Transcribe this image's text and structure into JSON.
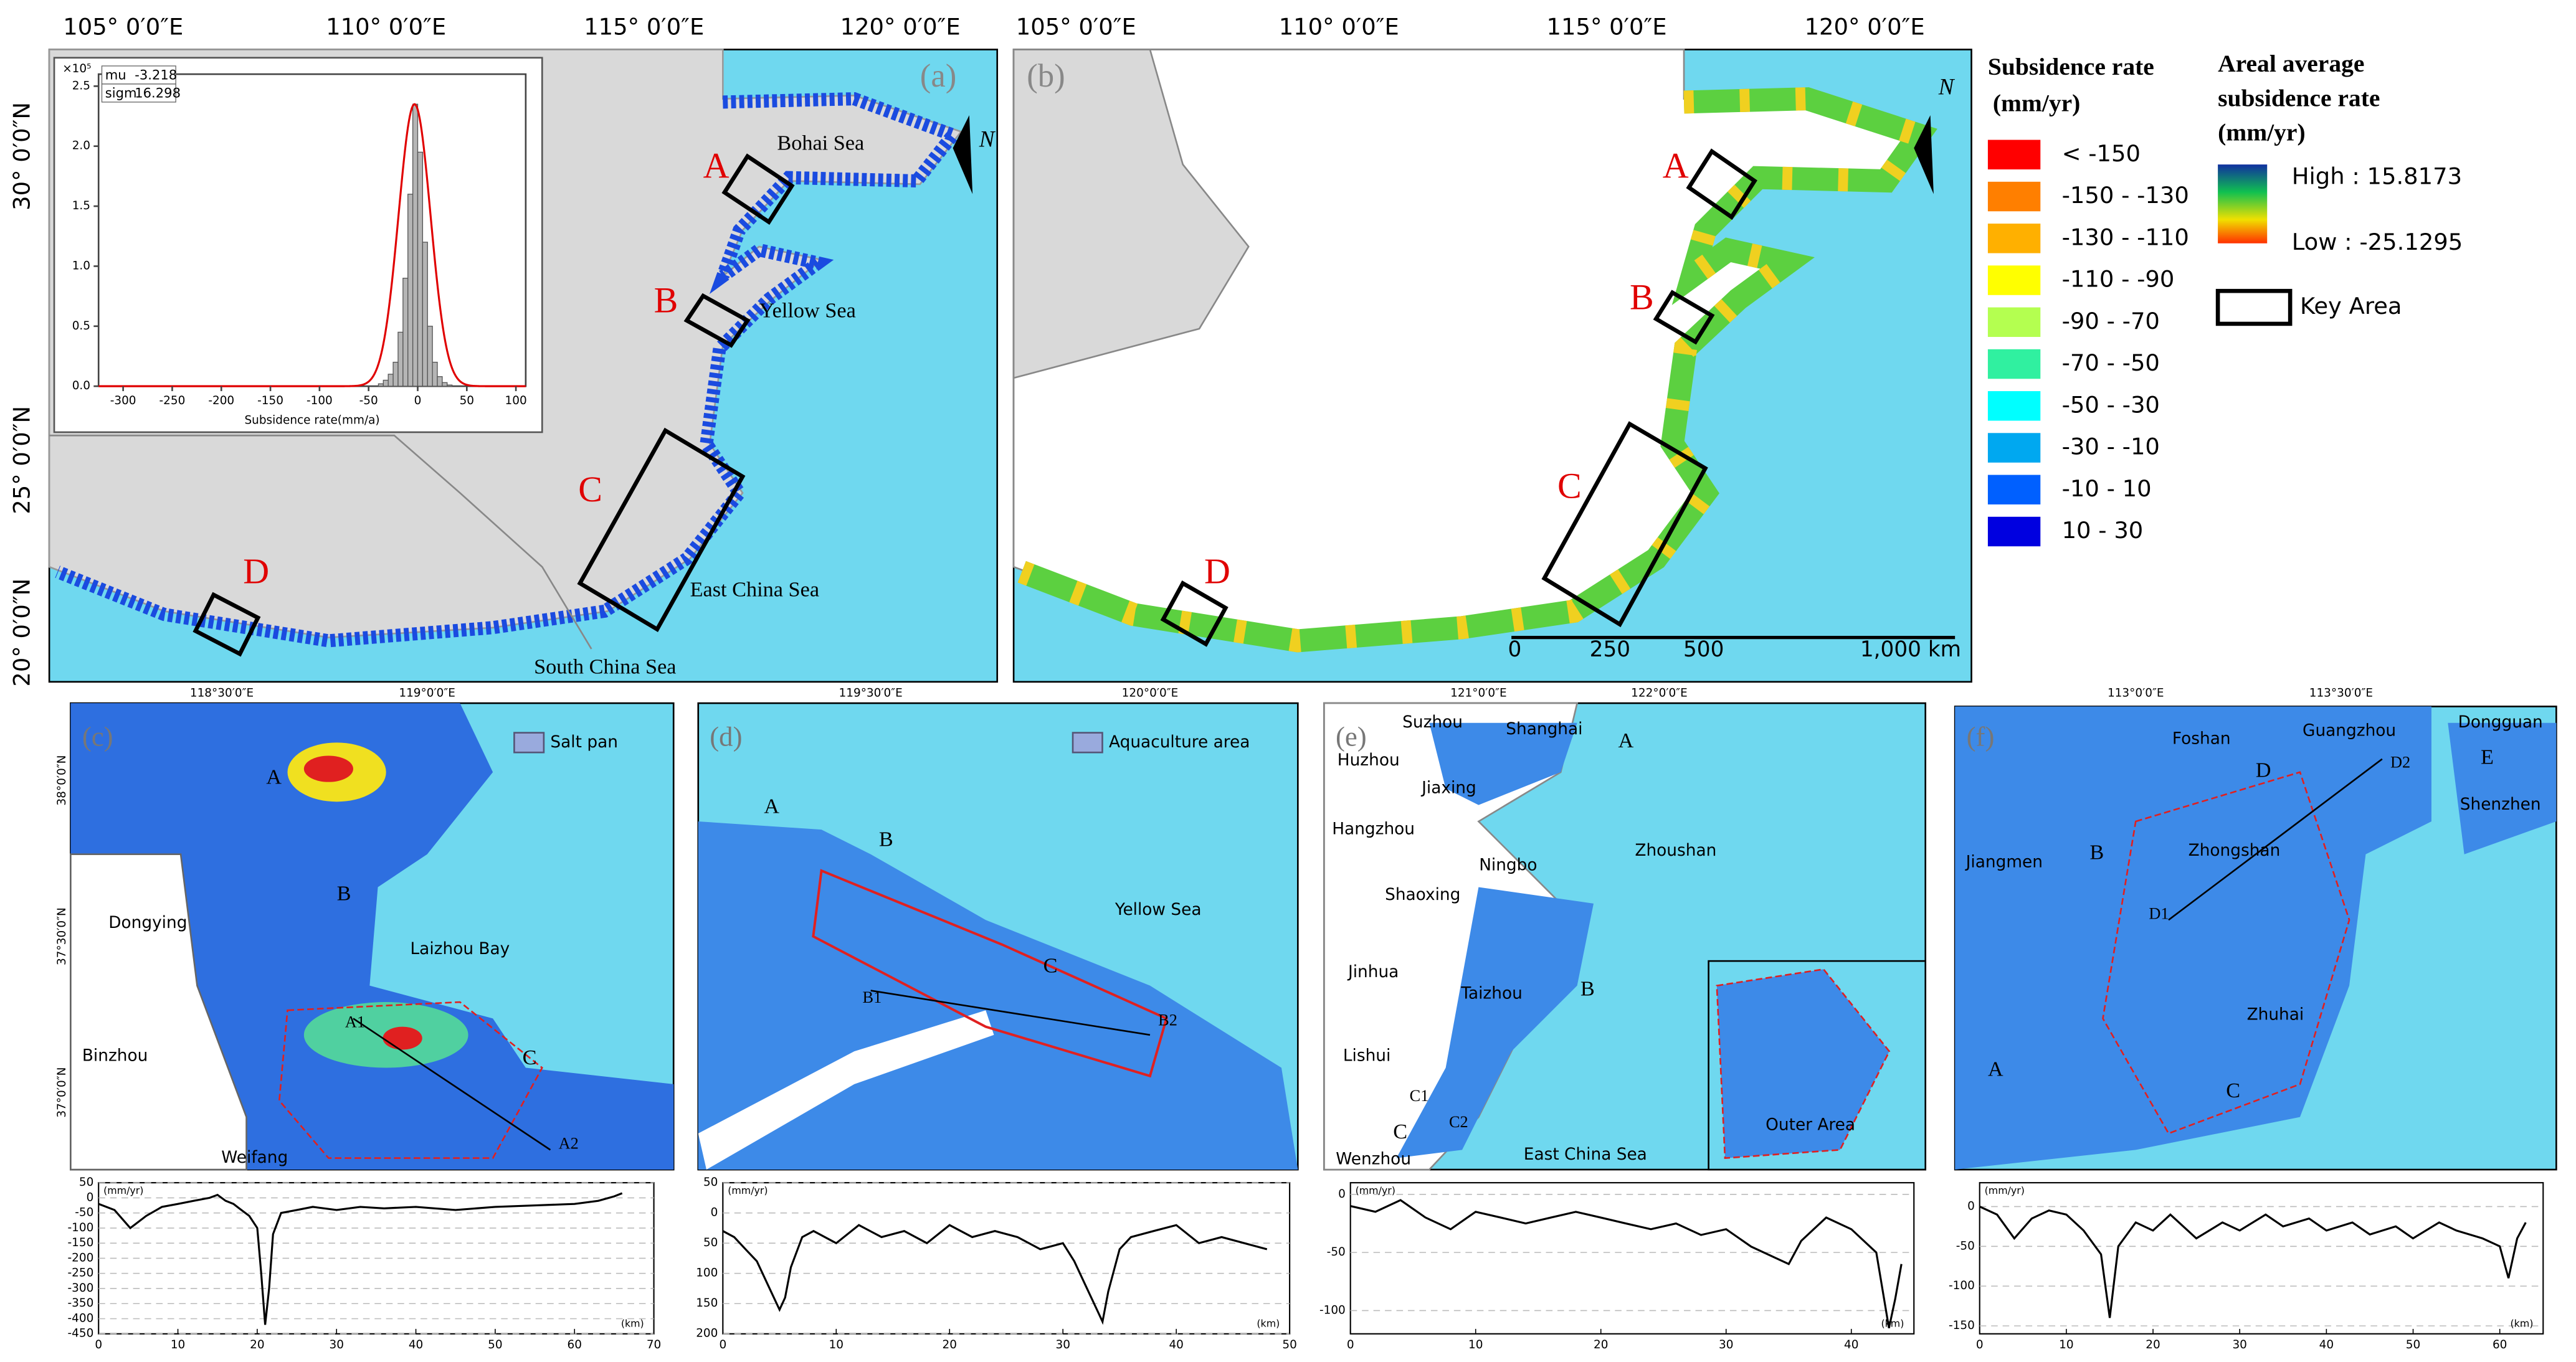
{
  "panels": {
    "a": {
      "label": "(a)",
      "lon_labels": [
        "105° 0′0″E",
        "110° 0′0″E",
        "115° 0′0″E",
        "120° 0′0″E"
      ],
      "lat_labels": [
        "30° 0′0″N",
        "25° 0′0″N",
        "20° 0′0″N"
      ],
      "key_areas": [
        "A",
        "B",
        "C",
        "D"
      ],
      "seas": [
        "Bohai Sea",
        "Yellow Sea",
        "East China Sea",
        "South China Sea"
      ],
      "north": "N"
    },
    "b": {
      "label": "(b)",
      "lon_labels": [
        "105° 0′0″E",
        "110° 0′0″E",
        "115° 0′0″E",
        "120° 0′0″E"
      ],
      "key_areas": [
        "A",
        "B",
        "C",
        "D"
      ],
      "north": "N",
      "scale_bar": [
        0,
        250,
        500,
        "1,000 km"
      ]
    },
    "c": {
      "label": "(c)",
      "lon_labels": [
        "118°30′0″E",
        "119°0′0″E"
      ],
      "lat_labels": [
        "38°0′0″N",
        "37°30′0″N",
        "37°0′0″N"
      ],
      "legend": "Salt pan",
      "places": [
        "Laizhou Bay",
        "Dongying",
        "Binzhou",
        "Weifang"
      ],
      "areas": [
        "A",
        "B",
        "C"
      ],
      "profile_ends": [
        "A1",
        "A2"
      ]
    },
    "d": {
      "label": "(d)",
      "lon_labels": [
        "119°30′0″E",
        "120°0′0″E"
      ],
      "legend": "Aquaculture area",
      "places": [
        "Yellow Sea"
      ],
      "areas": [
        "A",
        "B",
        "C"
      ],
      "profile_ends": [
        "B1",
        "B2"
      ]
    },
    "e": {
      "label": "(e)",
      "lon_labels": [
        "121°0′0″E",
        "122°0′0″E"
      ],
      "places": [
        "Suzhou",
        "Shanghai",
        "Huzhou",
        "Jiaxing",
        "Hangzhou",
        "Shaoxing",
        "Ningbo",
        "Zhoushan",
        "Jinhua",
        "Taizhou",
        "Lishui",
        "Wenzhou",
        "East China Sea",
        "Outer Area"
      ],
      "areas": [
        "A",
        "B",
        "C"
      ],
      "profile_ends": [
        "C1",
        "C2"
      ]
    },
    "f": {
      "label": "(f)",
      "lon_labels": [
        "113°0′0″E",
        "113°30′0″E"
      ],
      "places": [
        "Foshan",
        "Guangzhou",
        "Dongguan",
        "Shenzhen",
        "Jiangmen",
        "Zhongshan",
        "Zhuhai"
      ],
      "areas": [
        "A",
        "B",
        "C",
        "D",
        "E"
      ],
      "profile_ends": [
        "D1",
        "D2"
      ]
    }
  },
  "legend": {
    "title": "Subsidence rate",
    "unit": "(mm/yr)",
    "classes": [
      {
        "label": "< -150",
        "color": "#ff0000"
      },
      {
        "label": "-150 - -130",
        "color": "#ff7f00"
      },
      {
        "label": "-130 - -110",
        "color": "#ffb000"
      },
      {
        "label": "-110 - -90",
        "color": "#ffff00"
      },
      {
        "label": "-90 - -70",
        "color": "#b4ff50"
      },
      {
        "label": "-70 - -50",
        "color": "#30f0a0"
      },
      {
        "label": "-50 - -30",
        "color": "#00ffff"
      },
      {
        "label": "-30 - -10",
        "color": "#00a8f0"
      },
      {
        "label": "-10 - 10",
        "color": "#0060ff"
      },
      {
        "label": "10 - 30",
        "color": "#0000e0"
      }
    ]
  },
  "areal_legend": {
    "title": [
      "Areal average",
      "subsidence rate",
      "(mm/yr)"
    ],
    "high": "High : 15.8173",
    "low": "Low : -25.1295",
    "key_area": "Key Area"
  },
  "chart_data": [
    {
      "type": "histogram",
      "multiplier": "×10⁵",
      "stats": [
        {
          "name": "mu",
          "value": -3.218
        },
        {
          "name": "sigm",
          "value": 16.298
        }
      ],
      "xlabel": "Subsidence rate(mm/a)",
      "bins": [
        -40,
        -35,
        -30,
        -25,
        -20,
        -15,
        -10,
        -5,
        0,
        5,
        10,
        15,
        20,
        25,
        30,
        35
      ],
      "values": [
        0.02,
        0.05,
        0.1,
        0.2,
        0.45,
        0.9,
        1.6,
        2.35,
        1.95,
        1.2,
        0.5,
        0.2,
        0.08,
        0.03,
        0.01
      ],
      "xlim": [
        -325,
        110
      ],
      "ylim": [
        0,
        2.6
      ],
      "xticks": [
        -300,
        -250,
        -200,
        -150,
        -100,
        -50,
        0,
        50,
        100
      ],
      "yticks": [
        {
          "value": 0,
          "label": "0.0"
        },
        0.5,
        {
          "value": 1,
          "label": "1.0"
        },
        1.5,
        {
          "value": 2,
          "label": "2.0"
        },
        2.5
      ],
      "color": "#b5b5b5",
      "fit_color": "#e00000"
    },
    {
      "type": "line",
      "y_unit": "(mm/yr)",
      "x_unit": "(km)",
      "x": [
        0,
        2,
        4,
        6,
        8,
        10,
        12,
        14,
        15,
        16,
        17,
        18,
        19,
        20,
        20.5,
        21,
        21.5,
        22,
        23,
        25,
        27,
        30,
        33,
        36,
        40,
        45,
        50,
        55,
        60,
        63,
        65,
        66
      ],
      "values": [
        -20,
        -40,
        -100,
        -60,
        -30,
        -20,
        -10,
        0,
        10,
        -10,
        -20,
        -40,
        -60,
        -100,
        -250,
        -420,
        -300,
        -120,
        -50,
        -40,
        -30,
        -40,
        -30,
        -35,
        -30,
        -40,
        -30,
        -25,
        -20,
        -10,
        5,
        15
      ],
      "xlim": [
        0,
        70
      ],
      "ylim": [
        -450,
        50
      ],
      "xticks": [
        0,
        10,
        20,
        30,
        40,
        50,
        60,
        70
      ],
      "yticks": [
        50,
        0,
        -50,
        -100,
        -150,
        -200,
        -250,
        -300,
        -350,
        -400,
        -450
      ],
      "grid": true,
      "color": "#000000"
    },
    {
      "type": "line",
      "y_unit": "(mm/yr)",
      "x_unit": "(km)",
      "x": [
        0,
        1,
        2,
        3,
        4,
        5,
        5.5,
        6,
        7,
        8,
        10,
        12,
        14,
        16,
        18,
        20,
        22,
        24,
        26,
        28,
        30,
        31,
        32,
        33,
        33.5,
        34,
        35,
        36,
        38,
        40,
        42,
        44,
        46,
        48
      ],
      "values": [
        -30,
        -40,
        -60,
        -80,
        -120,
        -160,
        -140,
        -90,
        -40,
        -30,
        -50,
        -20,
        -40,
        -30,
        -50,
        -20,
        -40,
        -30,
        -40,
        -60,
        -50,
        -80,
        -120,
        -160,
        -180,
        -130,
        -60,
        -40,
        -30,
        -20,
        -50,
        -40,
        -50,
        -60
      ],
      "xlim": [
        0,
        50
      ],
      "ylim": [
        -200,
        50
      ],
      "xticks": [
        0,
        10,
        20,
        30,
        40,
        50
      ],
      "yticks": [
        50,
        0,
        {
          "value": -50,
          "label": "50"
        },
        {
          "value": -100,
          "label": "100"
        },
        {
          "value": -150,
          "label": "150"
        },
        {
          "value": -200,
          "label": "200"
        }
      ],
      "grid": true,
      "color": "#000000"
    },
    {
      "type": "line",
      "y_unit": "(mm/yr)",
      "x_unit": "(km)",
      "x": [
        0,
        2,
        4,
        6,
        8,
        10,
        12,
        14,
        16,
        18,
        20,
        22,
        24,
        26,
        28,
        30,
        32,
        34,
        35,
        36,
        38,
        40,
        42,
        43,
        43.5,
        44
      ],
      "values": [
        -10,
        -15,
        -5,
        -20,
        -30,
        -15,
        -20,
        -25,
        -20,
        -15,
        -20,
        -25,
        -30,
        -25,
        -35,
        -30,
        -45,
        -55,
        -60,
        -40,
        -20,
        -30,
        -50,
        -115,
        -90,
        -60
      ],
      "xlim": [
        0,
        45
      ],
      "ylim": [
        -120,
        10
      ],
      "xticks": [
        0,
        10,
        20,
        30,
        40
      ],
      "yticks": [
        0,
        -50,
        -100
      ],
      "grid": true,
      "color": "#000000"
    },
    {
      "type": "line",
      "y_unit": "(mm/yr)",
      "x_unit": "(km)",
      "x": [
        0,
        2,
        4,
        6,
        8,
        10,
        12,
        14,
        15,
        16,
        18,
        20,
        22,
        25,
        28,
        30,
        33,
        35,
        38,
        40,
        43,
        45,
        48,
        50,
        53,
        55,
        58,
        60,
        61,
        62,
        63
      ],
      "values": [
        0,
        -10,
        -40,
        -15,
        -5,
        -10,
        -30,
        -60,
        -140,
        -50,
        -20,
        -30,
        -10,
        -40,
        -20,
        -30,
        -10,
        -25,
        -15,
        -30,
        -20,
        -35,
        -25,
        -40,
        -20,
        -30,
        -40,
        -50,
        -90,
        -40,
        -20
      ],
      "xlim": [
        0,
        65
      ],
      "ylim": [
        -160,
        30
      ],
      "xticks": [
        0,
        10,
        20,
        30,
        40,
        50,
        60
      ],
      "yticks": [
        0,
        -50,
        -100,
        -150
      ],
      "grid": true,
      "color": "#000000"
    }
  ]
}
